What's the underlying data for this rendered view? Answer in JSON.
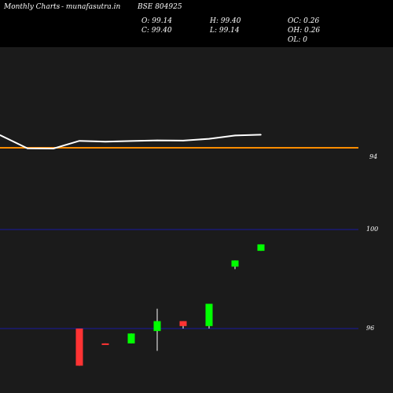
{
  "header": {
    "brand": "Monthly Charts",
    "site": "- munafasutra.in",
    "symbol": "BSE 804925",
    "open": "O: 99.14",
    "close": "C: 99.40",
    "high": "H: 99.40",
    "low": "L: 99.14",
    "oc": "OC: 0.26",
    "oh": "OH: 0.26",
    "ol": "OL: 0"
  },
  "colors": {
    "background": "#000000",
    "upper_panel": "#1b1b1b",
    "line": "#ffffff",
    "reference_line": "#ff8c00",
    "gridline": "#1a1aa0",
    "bull": "#00ff00",
    "bear": "#ff3333",
    "wick": "#ffffff"
  },
  "chart_data": [
    {
      "type": "line",
      "y_axis_labels": [
        "94"
      ],
      "reference_line_value": 94,
      "series": [
        {
          "values": [
            100.2,
            93.7,
            93.6,
            97.4,
            97.0,
            97.3,
            97.6,
            97.5,
            98.4,
            100.0,
            100.4
          ]
        }
      ]
    },
    {
      "type": "candlestick",
      "y_axis_labels": [
        "100",
        "96"
      ],
      "gridlines": [
        100,
        96
      ],
      "candles": [
        {
          "open": 96.0,
          "close": 94.5,
          "high": 96.0,
          "low": 94.5
        },
        {
          "open": 95.4,
          "close": 95.35,
          "high": 95.4,
          "low": 95.35
        },
        {
          "open": 95.4,
          "close": 95.8,
          "high": 95.8,
          "low": 95.4
        },
        {
          "open": 95.9,
          "close": 96.3,
          "high": 96.8,
          "low": 95.1
        },
        {
          "open": 96.3,
          "close": 96.1,
          "high": 96.3,
          "low": 96.0
        },
        {
          "open": 96.1,
          "close": 97.0,
          "high": 97.0,
          "low": 96.0
        },
        {
          "open": 98.5,
          "close": 98.75,
          "high": 98.75,
          "low": 98.4
        },
        {
          "open": 99.14,
          "close": 99.4,
          "high": 99.4,
          "low": 99.14
        }
      ]
    }
  ]
}
